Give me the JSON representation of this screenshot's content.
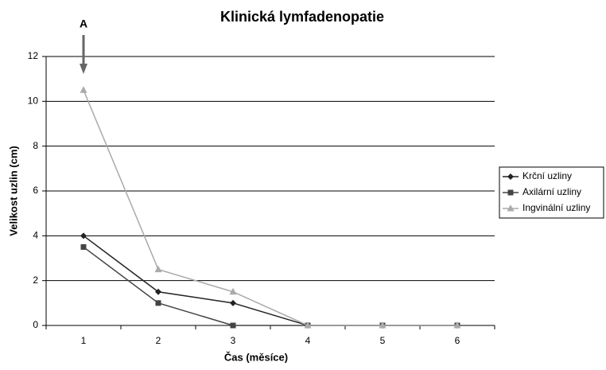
{
  "chart_data": {
    "type": "line",
    "title": "Klinická lymfadenopatie",
    "x_label": "Čas (měsíce)",
    "y_label": "Velikost uzlin (cm)",
    "annotation": "A",
    "categories": [
      "1",
      "2",
      "3",
      "4",
      "5",
      "6"
    ],
    "series": [
      {
        "name": "Krční uzliny",
        "color": "#222222",
        "marker": "diamond",
        "values": [
          4,
          1.5,
          1,
          0,
          0,
          0
        ]
      },
      {
        "name": "Axilární uzliny",
        "color": "#444444",
        "marker": "square",
        "values": [
          3.5,
          1,
          0,
          0,
          0,
          0
        ]
      },
      {
        "name": "Ingvinální uzliny",
        "color": "#aaaaaa",
        "marker": "triangle",
        "values": [
          10.5,
          2.5,
          1.5,
          0,
          0,
          0
        ]
      }
    ],
    "ylim": [
      0,
      12
    ],
    "yticks": [
      0,
      2,
      4,
      6,
      8,
      10,
      12
    ],
    "grid": true,
    "legend": "right"
  }
}
